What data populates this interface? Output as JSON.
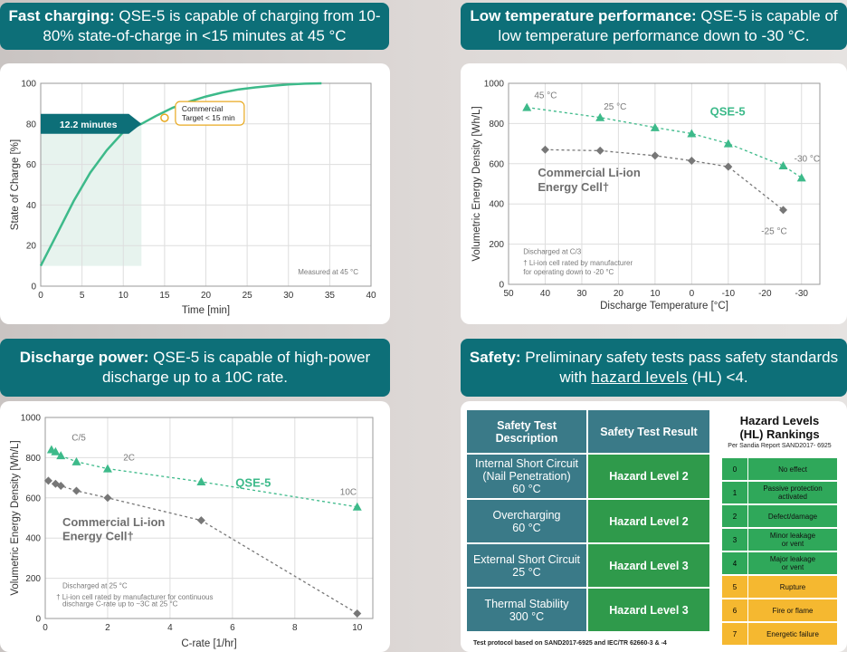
{
  "banners": {
    "fast": {
      "bold": "Fast charging:",
      "rest": " QSE-5 is capable of charging from 10-80% state-of-charge in <15 minutes at 45 °C"
    },
    "lowtemp": {
      "bold": "Low temperature performance:",
      "rest": " QSE-5 is capable of low temperature performance down to -30 °C."
    },
    "discharge": {
      "bold": "Discharge power:",
      "rest": " QSE-5 is capable of high-power discharge up to a 10C rate."
    },
    "safety": {
      "bold": "Safety:",
      "rest1": " Preliminary safety tests pass safety standards with ",
      "link": "hazard levels",
      "rest2": " (HL) <4."
    }
  },
  "colors": {
    "teal": "#0d6f78",
    "green": "#3dba8a",
    "gray": "#7a7a7a",
    "table_blue": "#3a7a88",
    "table_green": "#2f9a4b",
    "hl_green": "#2fa85a",
    "hl_orange": "#f5b830"
  },
  "chart_data": [
    {
      "type": "line",
      "xlabel": "Time [min]",
      "ylabel": "State of Charge [%]",
      "xlim": [
        0,
        40
      ],
      "ylim": [
        0,
        100
      ],
      "xticks": [
        "0",
        "5",
        "10",
        "15",
        "20",
        "25",
        "30",
        "35",
        "40"
      ],
      "yticks": [
        "0",
        "20",
        "40",
        "60",
        "80",
        "100"
      ],
      "series": [
        {
          "values": [
            [
              0,
              10
            ],
            [
              2,
              26
            ],
            [
              4,
              42
            ],
            [
              6,
              56
            ],
            [
              8,
              67
            ],
            [
              10,
              76
            ],
            [
              12.2,
              80
            ],
            [
              14,
              84
            ],
            [
              16,
              88
            ],
            [
              18,
              91
            ],
            [
              20,
              93.5
            ],
            [
              22,
              95.5
            ],
            [
              24,
              97
            ],
            [
              26,
              98
            ],
            [
              28,
              98.8
            ],
            [
              30,
              99.4
            ],
            [
              32,
              99.8
            ],
            [
              34,
              100
            ]
          ]
        }
      ],
      "annotations": {
        "time_label": "12.2 minutes",
        "target_label_1": "Commercial",
        "target_label_2": "Target < 15 min",
        "note": "Measured at 45 °C"
      }
    },
    {
      "type": "line",
      "xlabel": "Discharge Temperature [°C]",
      "ylabel": "Volumetric Energy Density [Wh/L]",
      "xlim": [
        50,
        -35
      ],
      "ylim": [
        0,
        1000
      ],
      "xticks": [
        "50",
        "40",
        "30",
        "20",
        "10",
        "0",
        "-10",
        "-20",
        "-30"
      ],
      "yticks": [
        "0",
        "200",
        "400",
        "600",
        "800",
        "1000"
      ],
      "series": [
        {
          "name": "QSE-5",
          "values": [
            [
              45,
              880
            ],
            [
              25,
              830
            ],
            [
              10,
              780
            ],
            [
              0,
              750
            ],
            [
              -10,
              700
            ],
            [
              -25,
              590
            ],
            [
              -30,
              530
            ]
          ]
        },
        {
          "name": "Commercial Li-ion Energy Cell†",
          "values": [
            [
              40,
              670
            ],
            [
              25,
              665
            ],
            [
              10,
              640
            ],
            [
              0,
              615
            ],
            [
              -10,
              585
            ],
            [
              -25,
              370
            ]
          ]
        }
      ],
      "annotations": {
        "t45": "45 °C",
        "t25": "25 °C",
        "tm30": "-30 °C",
        "tm25": "-25 °C",
        "note1": "Discharged at C/3",
        "note2": "† Li-ion cell rated by manufacturer",
        "note3": "for operating down to -20 °C"
      }
    },
    {
      "type": "line",
      "xlabel": "C-rate [1/hr]",
      "ylabel": "Volumetric Energy Density [Wh/L]",
      "xlim": [
        0,
        10.5
      ],
      "ylim": [
        0,
        1000
      ],
      "xticks": [
        "0",
        "2",
        "4",
        "6",
        "8",
        "10"
      ],
      "yticks": [
        "0",
        "200",
        "400",
        "600",
        "800",
        "1000"
      ],
      "series": [
        {
          "name": "QSE-5",
          "values": [
            [
              0.2,
              840
            ],
            [
              0.33,
              830
            ],
            [
              0.5,
              810
            ],
            [
              1,
              780
            ],
            [
              2,
              745
            ],
            [
              5,
              680
            ],
            [
              10,
              555
            ]
          ]
        },
        {
          "name": "Commercial Li-ion Energy Cell†",
          "values": [
            [
              0.1,
              685
            ],
            [
              0.33,
              670
            ],
            [
              0.5,
              660
            ],
            [
              1,
              635
            ],
            [
              2,
              600
            ],
            [
              5,
              488
            ],
            [
              10,
              25
            ]
          ]
        }
      ],
      "annotations": {
        "c5": "C/5",
        "c2": "2C",
        "c10": "10C",
        "note1": "Discharged at 25 °C",
        "note2": "† Li-ion cell rated by manufacturer for continuous",
        "note3": "discharge C-rate up to ~3C at 25 °C"
      }
    }
  ],
  "legend_labels": {
    "qse": "QSE-5",
    "comm1": "Commercial Li-ion",
    "comm2": "Energy Cell†"
  },
  "safety_table": {
    "headers": [
      "Safety Test Description",
      "Safety Test Result"
    ],
    "rows": [
      {
        "desc1": "Internal Short Circuit",
        "desc2": "(Nail Penetration)",
        "desc3": "60 °C",
        "result": "Hazard Level 2"
      },
      {
        "desc1": "Overcharging",
        "desc2": "60 °C",
        "result": "Hazard Level 2"
      },
      {
        "desc1": "External Short Circuit",
        "desc2": "25 °C",
        "result": "Hazard Level 3"
      },
      {
        "desc1": "Thermal Stability",
        "desc2": "300 °C",
        "result": "Hazard Level 3"
      }
    ],
    "footnote": "Test protocol based on SAND2017-6925 and IEC/TR 62660-3 & -4"
  },
  "hazard_levels": {
    "title1": "Hazard Levels",
    "title2": "(HL) Rankings",
    "subtitle": "Per Sandia Report SAND2017- 6925",
    "rows": [
      {
        "level": "0",
        "text1": "No effect",
        "text2": "",
        "color": "#2fa85a"
      },
      {
        "level": "1",
        "text1": "Passive protection",
        "text2": "activated",
        "color": "#2fa85a"
      },
      {
        "level": "2",
        "text1": "Defect/damage",
        "text2": "",
        "color": "#2fa85a"
      },
      {
        "level": "3",
        "text1": "Minor leakage",
        "text2": "or vent",
        "color": "#2fa85a"
      },
      {
        "level": "4",
        "text1": "Major leakage",
        "text2": "or vent",
        "color": "#2fa85a"
      },
      {
        "level": "5",
        "text1": "Rupture",
        "text2": "",
        "color": "#f5b830"
      },
      {
        "level": "6",
        "text1": "Fire or flame",
        "text2": "",
        "color": "#f5b830"
      },
      {
        "level": "7",
        "text1": "Energetic failure",
        "text2": "",
        "color": "#f5b830"
      }
    ]
  }
}
